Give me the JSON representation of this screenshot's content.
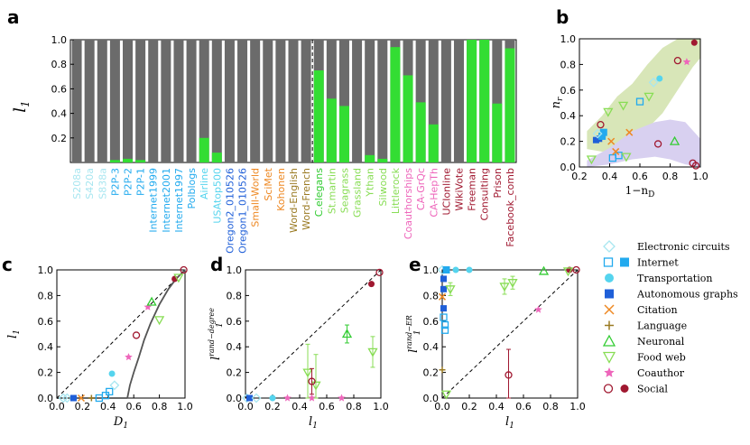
{
  "panel_labels": {
    "a": "a",
    "b": "b",
    "c": "c",
    "d": "d",
    "e": "e"
  },
  "colors": {
    "gray": "#6b6b6b",
    "green": "#33dd33",
    "electronic": "#a8e6f0",
    "internet": "#22aaee",
    "transport": "#55d4ee",
    "autonomous": "#1f5fd8",
    "citation": "#ee8822",
    "language": "#9a7a22",
    "neuronal": "#33cc33",
    "foodweb": "#88dd55",
    "coauthor": "#ee66bb",
    "social": "#a01830",
    "band_green": "#d8e6b8",
    "band_purple": "#d8d0f0"
  },
  "chart_data": [
    {
      "panel": "a",
      "type": "bar",
      "stacked": true,
      "ylabel": "l_1",
      "ylim": [
        0,
        1.0
      ],
      "yticks": [
        "0.2",
        "0.4",
        "0.6",
        "0.8",
        "1.0"
      ],
      "categories": [
        "S208a",
        "S420a",
        "S838a",
        "P2P-3",
        "P2P-2",
        "P2P-1",
        "Internet1999",
        "Internet2001",
        "Internet1997",
        "Polblogs",
        "Airline",
        "USAtop500",
        "Oregon2_010526",
        "Oregon1_010526",
        "Small-World",
        "SciMet",
        "Kohonen",
        "Word-English",
        "Word-French",
        "C.elegans",
        "St.martin",
        "Seagrass",
        "Grassland",
        "Ythan",
        "Silwood",
        "Littlerock",
        "Coauthorships",
        "CA-GrQc",
        "CA-HepTh",
        "UCIonline",
        "WikiVote",
        "Freeman",
        "Consulting",
        "Prison",
        "Facebook_comb"
      ],
      "category_colors": [
        "#a8e6f0",
        "#a8e6f0",
        "#a8e6f0",
        "#22aaee",
        "#22aaee",
        "#22aaee",
        "#22aaee",
        "#22aaee",
        "#22aaee",
        "#22aaee",
        "#55d4ee",
        "#55d4ee",
        "#1f5fd8",
        "#1f5fd8",
        "#ee8822",
        "#ee8822",
        "#ee8822",
        "#9a7a22",
        "#9a7a22",
        "#33cc33",
        "#88dd55",
        "#88dd55",
        "#88dd55",
        "#88dd55",
        "#88dd55",
        "#88dd55",
        "#ee66bb",
        "#ee66bb",
        "#ee66bb",
        "#a01830",
        "#a01830",
        "#a01830",
        "#a01830",
        "#a01830",
        "#a01830"
      ],
      "series": [
        {
          "name": "l1",
          "values": [
            0,
            0,
            0,
            0.02,
            0.03,
            0.02,
            0,
            0,
            0,
            0,
            0.2,
            0.08,
            0,
            0,
            0,
            0,
            0,
            0,
            0,
            0.75,
            0.52,
            0.46,
            0,
            0.06,
            0.03,
            0.94,
            0.71,
            0.49,
            0.31,
            0,
            0,
            1.0,
            1.0,
            0.48,
            0.93
          ]
        }
      ],
      "divider_after": "Word-French"
    },
    {
      "panel": "b",
      "type": "scatter",
      "xlabel": "1-n_D",
      "ylabel": "n_r",
      "xlim": [
        0.2,
        1.0
      ],
      "ylim": [
        0,
        1.0
      ],
      "xticks": [
        "0.2",
        "0.4",
        "0.6",
        "0.8",
        "1.0"
      ],
      "yticks": [
        "0.0",
        "0.2",
        "0.4",
        "0.6",
        "0.8",
        "1.0"
      ],
      "points": [
        {
          "x": 0.31,
          "y": 0.21,
          "cls": "autonomous"
        },
        {
          "x": 0.33,
          "y": 0.22,
          "cls": "autonomous"
        },
        {
          "x": 0.35,
          "y": 0.24,
          "cls": "internet"
        },
        {
          "x": 0.36,
          "y": 0.27,
          "cls": "internet"
        },
        {
          "x": 0.32,
          "y": 0.26,
          "cls": "electronic"
        },
        {
          "x": 0.42,
          "y": 0.07,
          "cls": "internet_open"
        },
        {
          "x": 0.46,
          "y": 0.09,
          "cls": "internet_open"
        },
        {
          "x": 0.44,
          "y": 0.12,
          "cls": "citation"
        },
        {
          "x": 0.53,
          "y": 0.27,
          "cls": "citation"
        },
        {
          "x": 0.41,
          "y": 0.2,
          "cls": "citation"
        },
        {
          "x": 0.6,
          "y": 0.51,
          "cls": "internet_open"
        },
        {
          "x": 0.69,
          "y": 0.66,
          "cls": "electronic"
        },
        {
          "x": 0.73,
          "y": 0.69,
          "cls": "transport"
        },
        {
          "x": 0.66,
          "y": 0.55,
          "cls": "foodweb"
        },
        {
          "x": 0.49,
          "y": 0.48,
          "cls": "foodweb"
        },
        {
          "x": 0.39,
          "y": 0.43,
          "cls": "foodweb"
        },
        {
          "x": 0.28,
          "y": 0.06,
          "cls": "foodweb"
        },
        {
          "x": 0.51,
          "y": 0.08,
          "cls": "foodweb"
        },
        {
          "x": 0.83,
          "y": 0.2,
          "cls": "neuronal"
        },
        {
          "x": 0.72,
          "y": 0.18,
          "cls": "social_open"
        },
        {
          "x": 0.34,
          "y": 0.33,
          "cls": "social_open"
        },
        {
          "x": 0.85,
          "y": 0.83,
          "cls": "social_open"
        },
        {
          "x": 0.91,
          "y": 0.82,
          "cls": "coauthor"
        },
        {
          "x": 0.96,
          "y": 0.97,
          "cls": "social"
        },
        {
          "x": 0.95,
          "y": 0.03,
          "cls": "social_open"
        },
        {
          "x": 0.97,
          "y": 0.01,
          "cls": "social_open"
        }
      ]
    },
    {
      "panel": "c",
      "type": "scatter",
      "xlabel": "D_1",
      "ylabel": "l_1",
      "xlim": [
        0,
        1.0
      ],
      "ylim": [
        0,
        1.0
      ],
      "xticks": [
        "0.0",
        "0.2",
        "0.4",
        "0.6",
        "0.8",
        "1.0"
      ],
      "yticks": [
        "0.0",
        "0.2",
        "0.4",
        "0.6",
        "0.8",
        "1.0"
      ],
      "curve": [
        [
          0.55,
          0
        ],
        [
          0.57,
          0.1
        ],
        [
          0.6,
          0.2
        ],
        [
          0.64,
          0.32
        ],
        [
          0.68,
          0.45
        ],
        [
          0.73,
          0.58
        ],
        [
          0.8,
          0.73
        ],
        [
          0.87,
          0.85
        ],
        [
          0.93,
          0.93
        ],
        [
          1.0,
          1.0
        ]
      ],
      "points": [
        {
          "x": 0.05,
          "y": 0,
          "cls": "electronic"
        },
        {
          "x": 0.08,
          "y": 0,
          "cls": "electronic"
        },
        {
          "x": 0.13,
          "y": 0,
          "cls": "autonomous"
        },
        {
          "x": 0.19,
          "y": 0,
          "cls": "citation"
        },
        {
          "x": 0.27,
          "y": 0,
          "cls": "language"
        },
        {
          "x": 0.33,
          "y": 0,
          "cls": "internet_open"
        },
        {
          "x": 0.38,
          "y": 0.02,
          "cls": "internet_open"
        },
        {
          "x": 0.41,
          "y": 0.05,
          "cls": "internet_open"
        },
        {
          "x": 0.43,
          "y": 0.19,
          "cls": "transport"
        },
        {
          "x": 0.45,
          "y": 0.1,
          "cls": "electronic"
        },
        {
          "x": 0.56,
          "y": 0.32,
          "cls": "coauthor"
        },
        {
          "x": 0.62,
          "y": 0.49,
          "cls": "social_open"
        },
        {
          "x": 0.71,
          "y": 0.71,
          "cls": "coauthor"
        },
        {
          "x": 0.74,
          "y": 0.75,
          "cls": "neuronal"
        },
        {
          "x": 0.8,
          "y": 0.61,
          "cls": "foodweb"
        },
        {
          "x": 0.92,
          "y": 0.93,
          "cls": "social"
        },
        {
          "x": 0.95,
          "y": 0.94,
          "cls": "foodweb"
        },
        {
          "x": 0.99,
          "y": 1.0,
          "cls": "social_open"
        }
      ]
    },
    {
      "panel": "d",
      "type": "scatter",
      "xlabel": "l_1",
      "ylabel": "l_1^rand-degree",
      "xlim": [
        0,
        1.0
      ],
      "ylim": [
        0,
        1.0
      ],
      "xticks": [
        "0.0",
        "0.2",
        "0.4",
        "0.6",
        "0.8",
        "1.0"
      ],
      "yticks": [
        "0.0",
        "0.2",
        "0.4",
        "0.6",
        "0.8",
        "1.0"
      ],
      "points": [
        {
          "x": 0.01,
          "y": 0,
          "cls": "electronic"
        },
        {
          "x": 0.03,
          "y": 0,
          "cls": "autonomous"
        },
        {
          "x": 0.2,
          "y": 0,
          "cls": "transport"
        },
        {
          "x": 0.08,
          "y": 0,
          "cls": "electronic"
        },
        {
          "x": 0.31,
          "y": 0,
          "cls": "coauthor"
        },
        {
          "x": 0.49,
          "y": 0,
          "cls": "coauthor"
        },
        {
          "x": 0.71,
          "y": 0,
          "cls": "coauthor"
        },
        {
          "x": 0.46,
          "y": 0.2,
          "cls": "foodweb",
          "err": 0.22
        },
        {
          "x": 0.52,
          "y": 0.1,
          "cls": "foodweb",
          "err": 0.24
        },
        {
          "x": 0.49,
          "y": 0.13,
          "cls": "social_open",
          "err": 0.1
        },
        {
          "x": 0.75,
          "y": 0.5,
          "cls": "neuronal",
          "err": 0.07
        },
        {
          "x": 0.94,
          "y": 0.36,
          "cls": "foodweb",
          "err": 0.12
        },
        {
          "x": 0.93,
          "y": 0.89,
          "cls": "social"
        },
        {
          "x": 0.99,
          "y": 0.98,
          "cls": "social_open"
        }
      ]
    },
    {
      "panel": "e",
      "type": "scatter",
      "xlabel": "l_1",
      "ylabel": "l_1^rand-ER",
      "xlim": [
        0,
        1.0
      ],
      "ylim": [
        0,
        1.0
      ],
      "xticks": [
        "0.0",
        "0.2",
        "0.4",
        "0.6",
        "0.8",
        "1.0"
      ],
      "yticks": [
        "0.0",
        "0.2",
        "0.4",
        "0.6",
        "0.8",
        "1.0"
      ],
      "points": [
        {
          "x": 0,
          "y": 1.0,
          "cls": "electronic"
        },
        {
          "x": 0.03,
          "y": 1.0,
          "cls": "internet"
        },
        {
          "x": 0.1,
          "y": 1.0,
          "cls": "transport"
        },
        {
          "x": 0.2,
          "y": 1.0,
          "cls": "transport"
        },
        {
          "x": 0.01,
          "y": 0.93,
          "cls": "autonomous"
        },
        {
          "x": 0.01,
          "y": 0.85,
          "cls": "autonomous"
        },
        {
          "x": 0,
          "y": 0.79,
          "cls": "citation"
        },
        {
          "x": 0.01,
          "y": 0.7,
          "cls": "autonomous"
        },
        {
          "x": 0.01,
          "y": 0.63,
          "cls": "internet_open"
        },
        {
          "x": 0.02,
          "y": 0.57,
          "cls": "internet_open"
        },
        {
          "x": 0.02,
          "y": 0.53,
          "cls": "internet_open"
        },
        {
          "x": 0,
          "y": 0.22,
          "cls": "language"
        },
        {
          "x": 0.03,
          "y": 0.03,
          "cls": "foodweb"
        },
        {
          "x": 0.06,
          "y": 0.85,
          "cls": "foodweb",
          "err": 0.05
        },
        {
          "x": 0.46,
          "y": 0.87,
          "cls": "foodweb",
          "err": 0.06
        },
        {
          "x": 0.52,
          "y": 0.9,
          "cls": "foodweb",
          "err": 0.05
        },
        {
          "x": 0.49,
          "y": 0.18,
          "cls": "social_open",
          "err": 0.2
        },
        {
          "x": 0.71,
          "y": 0.69,
          "cls": "coauthor"
        },
        {
          "x": 0.75,
          "y": 0.99,
          "cls": "neuronal"
        },
        {
          "x": 0.94,
          "y": 1.0,
          "cls": "social"
        },
        {
          "x": 0.99,
          "y": 1.0,
          "cls": "social_open"
        },
        {
          "x": 0.93,
          "y": 0.99,
          "cls": "foodweb"
        }
      ]
    }
  ],
  "legend": [
    {
      "label": "Electronic circuits",
      "sym": "electronic"
    },
    {
      "label": "Internet",
      "sym": "internet_pair"
    },
    {
      "label": "Transportation",
      "sym": "transport"
    },
    {
      "label": "Autonomous graphs",
      "sym": "autonomous"
    },
    {
      "label": "Citation",
      "sym": "citation"
    },
    {
      "label": "Language",
      "sym": "language"
    },
    {
      "label": "Neuronal",
      "sym": "neuronal"
    },
    {
      "label": "Food web",
      "sym": "foodweb"
    },
    {
      "label": "Coauthor",
      "sym": "coauthor"
    },
    {
      "label": "Social",
      "sym": "social_pair"
    }
  ]
}
